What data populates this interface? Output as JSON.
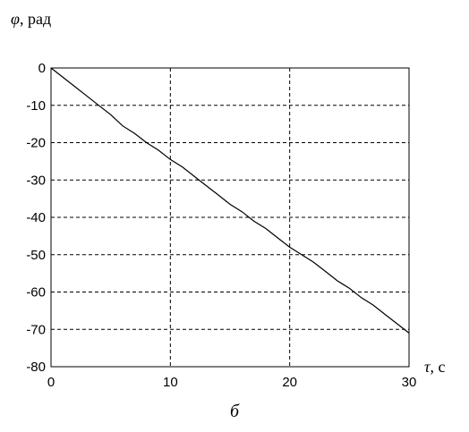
{
  "chart_data": {
    "type": "line",
    "caption": "б",
    "ylabel_symbol": "φ",
    "ylabel_unit": ", рад",
    "xlabel_symbol": "τ",
    "xlabel_unit": ", с",
    "xlim": [
      0,
      30
    ],
    "ylim": [
      -80,
      0
    ],
    "x_ticks": [
      0,
      10,
      20,
      30
    ],
    "y_ticks": [
      0,
      -10,
      -20,
      -30,
      -40,
      -50,
      -60,
      -70,
      -80
    ],
    "x_tick_labels": [
      "0",
      "10",
      "20",
      "30"
    ],
    "y_tick_labels": [
      "0",
      "-10",
      "-20",
      "-30",
      "-40",
      "-50",
      "-60",
      "-70",
      "-80"
    ],
    "grid": "dashed",
    "line_color": "#000000",
    "series": [
      {
        "x": [
          0,
          1,
          2,
          3,
          4,
          5,
          6,
          7,
          8,
          9,
          10,
          11,
          12,
          13,
          14,
          15,
          16,
          17,
          18,
          19,
          20,
          21,
          22,
          23,
          24,
          25,
          26,
          27,
          28,
          29,
          30
        ],
        "y": [
          0,
          -2.5,
          -5,
          -7.5,
          -10,
          -12.5,
          -15.5,
          -17.5,
          -20,
          -22,
          -24.5,
          -26.5,
          -29,
          -31.5,
          -34,
          -36.5,
          -38.5,
          -41,
          -43,
          -45.5,
          -48,
          -50,
          -52,
          -54.5,
          -57,
          -59,
          -61.5,
          -63.5,
          -66,
          -68.5,
          -71
        ]
      }
    ]
  }
}
